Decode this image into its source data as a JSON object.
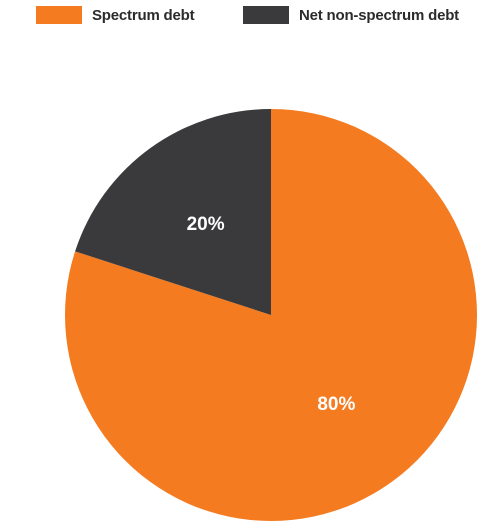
{
  "chart_data": {
    "type": "pie",
    "title": "",
    "categories": [
      "Spectrum debt",
      "Net non-spectrum debt"
    ],
    "values": [
      80,
      20
    ],
    "data_labels": [
      "80%",
      "20%"
    ],
    "colors": [
      "#F47B20",
      "#3A3A3C"
    ],
    "start_angle": "12 o'clock",
    "direction": "clockwise",
    "legend": {
      "position": "top",
      "items": [
        {
          "label": "Spectrum debt",
          "color": "#F47B20"
        },
        {
          "label": "Net non-spectrum debt",
          "color": "#3A3A3C"
        }
      ]
    }
  }
}
